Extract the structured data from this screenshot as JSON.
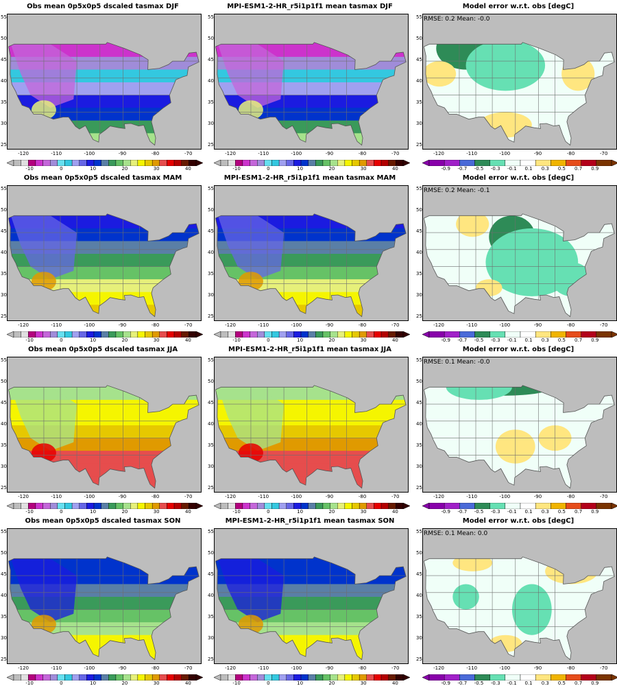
{
  "colors": {
    "temp_scale": [
      "#bdbdbd",
      "#e0e0e0",
      "#b3007e",
      "#cc33cc",
      "#c466d9",
      "#a08cd9",
      "#66e0f0",
      "#33c8e0",
      "#a0a0f0",
      "#6666e6",
      "#1b1be0",
      "#0033cc",
      "#5a7fa6",
      "#3a9a5a",
      "#66c266",
      "#a6e28c",
      "#e6f07a",
      "#f5f500",
      "#e6c800",
      "#e09a00",
      "#e64d4d",
      "#e60000",
      "#b30000",
      "#661a00",
      "#330000"
    ],
    "diff_scale": [
      "#8800aa",
      "#a020c8",
      "#4a6ad8",
      "#2e8b57",
      "#66e0b3",
      "#f0fff8",
      "#ffffff",
      "#ffe680",
      "#f0b400",
      "#e64c1a",
      "#b3001a",
      "#7a3300"
    ],
    "land_mask": "#bdbdbd"
  },
  "rows": [
    {
      "season": "DJF",
      "obs_title": "Obs mean 0p5x0p5 dscaled tasmax DJF",
      "model_title": "MPI-ESM1-2-HR_r5i1p1f1 mean tasmax DJF",
      "diff_title": "Model error w.r.t. obs [degC]",
      "stats": "RMSE: 0.2  Mean: -0.0"
    },
    {
      "season": "MAM",
      "obs_title": "Obs mean 0p5x0p5 dscaled tasmax MAM",
      "model_title": "MPI-ESM1-2-HR_r5i1p1f1 mean tasmax MAM",
      "diff_title": "Model error w.r.t. obs [degC]",
      "stats": "RMSE: 0.2  Mean: -0.1"
    },
    {
      "season": "JJA",
      "obs_title": "Obs mean 0p5x0p5 dscaled tasmax JJA",
      "model_title": "MPI-ESM1-2-HR_r5i1p1f1 mean tasmax JJA",
      "diff_title": "Model error w.r.t. obs [degC]",
      "stats": "RMSE: 0.1  Mean: -0.0"
    },
    {
      "season": "SON",
      "obs_title": "Obs mean 0p5x0p5 dscaled tasmax SON",
      "model_title": "MPI-ESM1-2-HR_r5i1p1f1 mean tasmax SON",
      "diff_title": "Model error w.r.t. obs [degC]",
      "stats": "RMSE: 0.1  Mean: 0.0"
    }
  ],
  "axes": {
    "lon_ticks": [
      "-120",
      "-110",
      "-100",
      "-90",
      "-80",
      "-70"
    ],
    "lat_ticks": [
      "55",
      "50",
      "45",
      "40",
      "35",
      "30",
      "25"
    ],
    "lon_range": [
      -125,
      -66
    ],
    "lat_range": [
      24,
      56
    ]
  },
  "temp_colorbar_labels": [
    "-10",
    "0",
    "10",
    "20",
    "30",
    "40"
  ],
  "diff_colorbar_labels": [
    "-0.9",
    "-0.7",
    "-0.5",
    "-0.3",
    "-0.1",
    "0.1",
    "0.3",
    "0.5",
    "0.7",
    "0.9"
  ]
}
